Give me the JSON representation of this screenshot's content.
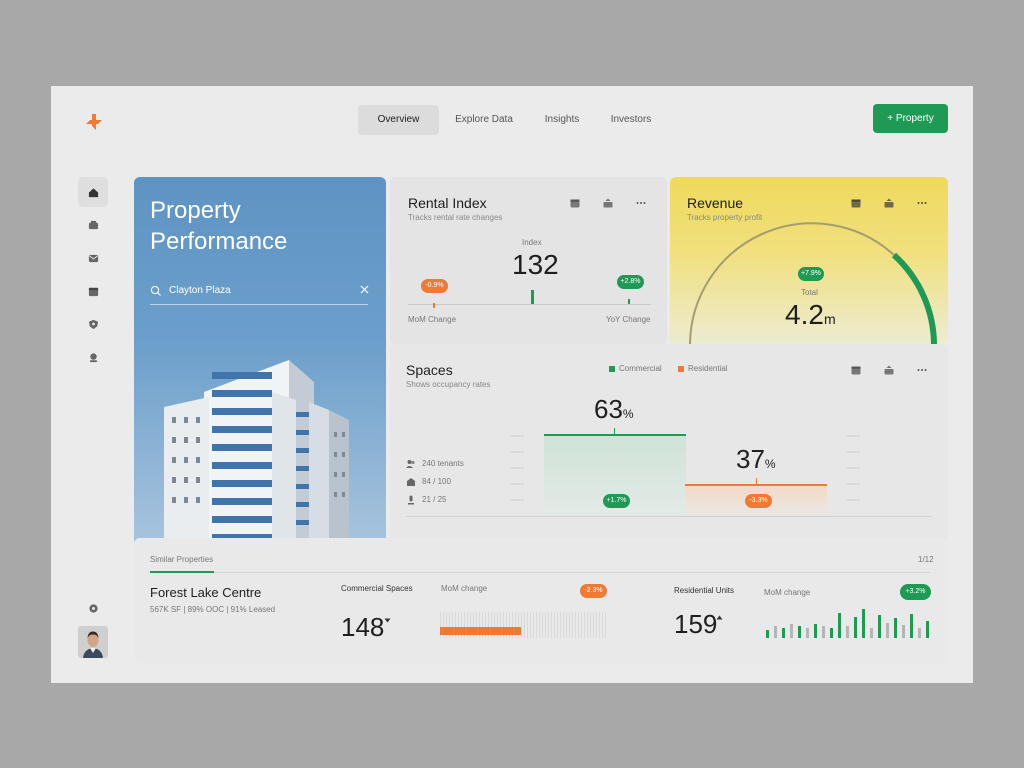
{
  "nav": {
    "tabs": [
      "Overview",
      "Explore Data",
      "Insights",
      "Investors"
    ],
    "add_property_label": "+ Property"
  },
  "colors": {
    "accent_green": "#1e9a55",
    "accent_orange": "#f07a34",
    "card_blue": "#6c9fcb",
    "card_yellow": "#efd95c"
  },
  "sidebar": {
    "icons": [
      "home-icon",
      "inbox-icon",
      "mail-icon",
      "calendar-icon",
      "shield-icon",
      "location-icon"
    ],
    "bottom_icon": "settings-icon"
  },
  "property": {
    "title_line1": "Property",
    "title_line2": "Performance",
    "search_value": "Clayton Plaza"
  },
  "rental": {
    "title": "Rental Index",
    "subtitle": "Tracks rental rate changes",
    "index_label": "Index",
    "index_value": "132",
    "mom_badge": "-0.9%",
    "yoy_badge": "+2.8%",
    "mom_label": "MoM Change",
    "yoy_label": "YoY Change"
  },
  "revenue": {
    "title": "Revenue",
    "subtitle": "Tracks property profit",
    "badge": "+7.9%",
    "total_label": "Total",
    "total_value": "4.2",
    "total_unit": "m"
  },
  "spaces": {
    "title": "Spaces",
    "subtitle": "Shows occupancy rates",
    "legend_commercial": "Commercial",
    "legend_residential": "Residential",
    "commercial_pct": "63",
    "residential_pct": "37",
    "pct_sign": "%",
    "commercial_change": "+1.7%",
    "residential_change": "-3.3%",
    "stats": [
      "240 tenants",
      "84 / 100",
      "21 / 25"
    ]
  },
  "similar": {
    "tab_label": "Similar Properties",
    "pager": "1/12",
    "name": "Forest Lake Centre",
    "meta": "567K SF | 89% OOC | 91% Leased",
    "commercial_label": "Commercial Spaces",
    "commercial_value": "148",
    "commercial_change_label": "MoM change",
    "commercial_badge": "-2.3%",
    "commercial_fill_fraction": 0.48,
    "residential_label": "Residential Units",
    "residential_value": "159",
    "residential_change_label": "MoM change",
    "residential_badge": "+3.2%"
  }
}
